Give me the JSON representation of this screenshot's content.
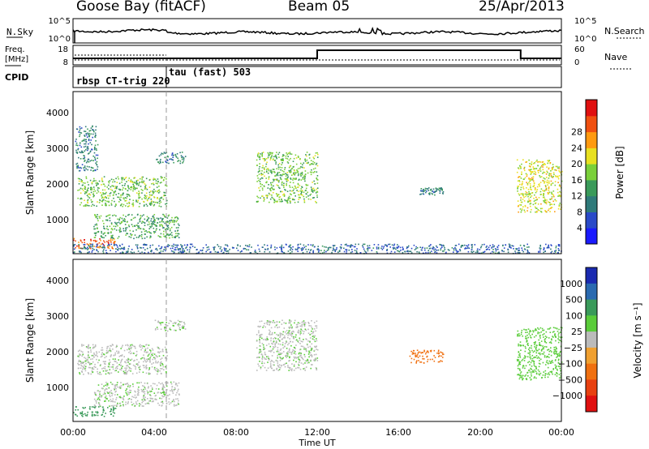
{
  "header": {
    "station": "Goose Bay (fitACF)",
    "beam": "Beam 05",
    "date": "25/Apr/2013"
  },
  "top_panels": {
    "nsky_label": "N.Sky",
    "nsky_ticks": [
      "10^5",
      "10^0"
    ],
    "nsearch_label": "N.Search",
    "nsearch_ticks": [
      "10^5",
      "10^0"
    ],
    "freq_label_1": "Freq.",
    "freq_label_2": "[MHz]",
    "freq_ticks": [
      "18",
      "8"
    ],
    "nave_label": "Nave",
    "nave_ticks": [
      "60",
      "0"
    ],
    "cpid_label": "CPID",
    "cpid_segments": [
      {
        "name": "rbsp CT-trig 220",
        "start": 0,
        "end": 4.6
      },
      {
        "name": "tau (fast) 503",
        "start": 4.6,
        "end": 24
      }
    ],
    "nave_steps": [
      {
        "start": 0,
        "end": 12,
        "value": 20
      },
      {
        "start": 12,
        "end": 22,
        "value": 45
      },
      {
        "start": 22,
        "end": 24,
        "value": 20
      }
    ]
  },
  "power_panel": {
    "ylabel": "Slant Range [km]",
    "yticks": [
      "1000",
      "2000",
      "3000",
      "4000"
    ],
    "cbar_label": "Power [dB]",
    "cbar_ticks": [
      "4",
      "8",
      "12",
      "16",
      "20",
      "24",
      "28"
    ],
    "cbar_colors": [
      "#1a1aff",
      "#2a4ac8",
      "#2f7a7a",
      "#3a9a5a",
      "#7ad03a",
      "#e8e020",
      "#ff9a10",
      "#f05010",
      "#e01010"
    ]
  },
  "velocity_panel": {
    "ylabel": "Slant Range [km]",
    "yticks": [
      "1000",
      "2000",
      "3000",
      "4000"
    ],
    "cbar_label": "Velocity [m s⁻¹]",
    "cbar_ticks": [
      "1000",
      "500",
      "100",
      "25",
      "−25",
      "−100",
      "−500",
      "−1000"
    ],
    "cbar_colors": [
      "#1a2ab0",
      "#2a6ab0",
      "#3a9a5a",
      "#5acc3a",
      "#bbbbbb",
      "#f0a030",
      "#f07010",
      "#e84010",
      "#e01010"
    ]
  },
  "xaxis": {
    "ticks": [
      "00:00",
      "04:00",
      "08:00",
      "12:00",
      "16:00",
      "20:00",
      "00:00"
    ],
    "label": "Time UT"
  },
  "chart_data": {
    "type": "heatmap",
    "title": "Goose Bay (fitACF)  Beam 05  25/Apr/2013",
    "xlabel": "Time UT",
    "ylabel": "Slant Range [km]",
    "xlim": [
      0,
      24
    ],
    "ylim": [
      180,
      4500
    ],
    "power_range_db": [
      0,
      30
    ],
    "velocity_range_ms": [
      -1000,
      1000
    ],
    "power_regions": [
      {
        "t0": 0,
        "t1": 2.1,
        "r0": 330,
        "r1": 600,
        "power": 26
      },
      {
        "t0": 1.0,
        "t1": 5.2,
        "r0": 600,
        "r1": 1250,
        "power": 12
      },
      {
        "t0": 0.2,
        "t1": 4.6,
        "r0": 1450,
        "r1": 2250,
        "power": 14
      },
      {
        "t0": 0.1,
        "t1": 1.2,
        "r0": 2400,
        "r1": 3600,
        "power": 8
      },
      {
        "t0": 4.0,
        "t1": 5.5,
        "r0": 2600,
        "r1": 2900,
        "power": 8
      },
      {
        "t0": 9.0,
        "t1": 12.0,
        "r0": 1550,
        "r1": 2900,
        "power": 14
      },
      {
        "t0": 17.0,
        "t1": 18.2,
        "r0": 1750,
        "r1": 1950,
        "power": 8
      },
      {
        "t0": 21.8,
        "t1": 24.0,
        "r0": 1300,
        "r1": 2700,
        "power": 18
      },
      {
        "t0": 0,
        "t1": 24,
        "r0": 200,
        "r1": 450,
        "power": 6
      }
    ],
    "velocity_regions": [
      {
        "t0": 0,
        "t1": 2.1,
        "r0": 330,
        "r1": 600,
        "velocity": 400
      },
      {
        "t0": 1.0,
        "t1": 5.2,
        "r0": 600,
        "r1": 1250,
        "velocity": 10
      },
      {
        "t0": 0.2,
        "t1": 4.6,
        "r0": 1450,
        "r1": 2250,
        "velocity": 10
      },
      {
        "t0": 4.0,
        "t1": 5.5,
        "r0": 2600,
        "r1": 2900,
        "velocity": 10
      },
      {
        "t0": 9.0,
        "t1": 12.0,
        "r0": 1550,
        "r1": 2900,
        "velocity": 10
      },
      {
        "t0": 16.5,
        "t1": 18.2,
        "r0": 1750,
        "r1": 2100,
        "velocity": -150
      },
      {
        "t0": 21.8,
        "t1": 24.0,
        "r0": 1300,
        "r1": 2700,
        "velocity": 60
      }
    ]
  }
}
